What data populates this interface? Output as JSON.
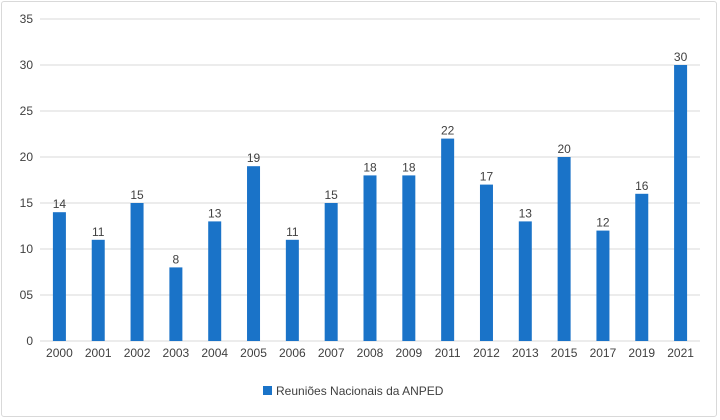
{
  "chart_data": {
    "type": "bar",
    "categories": [
      "2000",
      "2001",
      "2002",
      "2003",
      "2004",
      "2005",
      "2006",
      "2007",
      "2008",
      "2009",
      "2011",
      "2012",
      "2013",
      "2015",
      "2017",
      "2019",
      "2021"
    ],
    "series": [
      {
        "name": "Reuniões Nacionais da ANPED",
        "values": [
          14,
          11,
          15,
          8,
          13,
          19,
          11,
          15,
          18,
          18,
          22,
          17,
          13,
          20,
          12,
          16,
          30
        ],
        "color": "#1a73c8"
      }
    ],
    "y_tick_labels": [
      "0",
      "05",
      "10",
      "15",
      "20",
      "25",
      "30",
      "35"
    ],
    "y_tick_values": [
      0,
      5,
      10,
      15,
      20,
      25,
      30,
      35
    ],
    "ylim": [
      0,
      35
    ],
    "grid": "horizontal",
    "legend_position": "bottom",
    "title": "",
    "xlabel": "",
    "ylabel": "",
    "colors": {
      "bar": "#1a73c8",
      "grid": "#d9d9d9",
      "text": "#404040"
    }
  }
}
